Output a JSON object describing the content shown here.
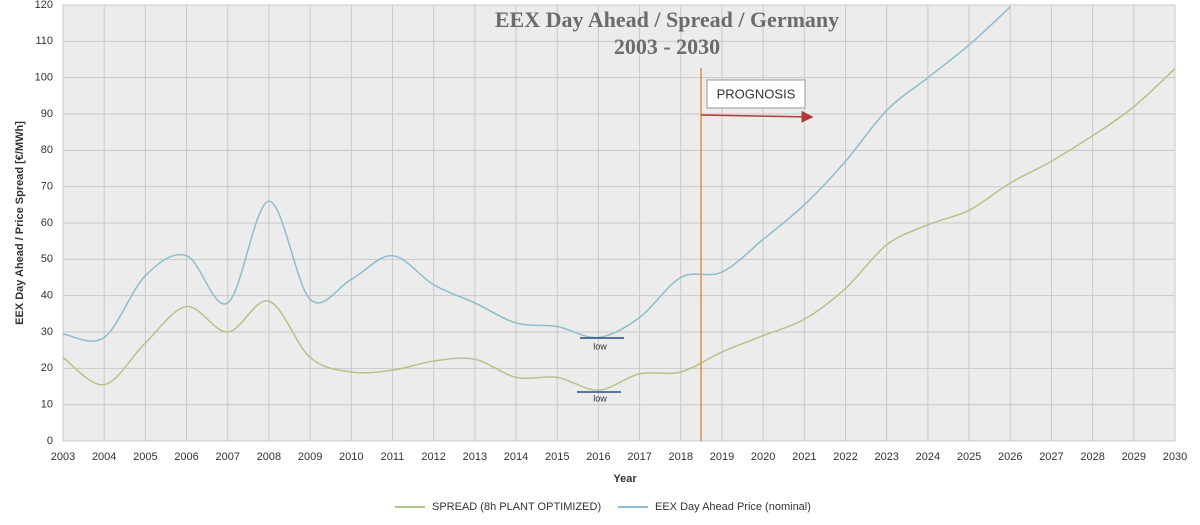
{
  "chart_data": {
    "type": "line",
    "title": "EEX Day Ahead / Spread / Germany",
    "subtitle": "2003 - 2030",
    "x_label": "Year",
    "y_label": "EEX Day Ahead / Price Spread [€/MWh]",
    "x": [
      2003,
      2004,
      2005,
      2006,
      2007,
      2008,
      2009,
      2010,
      2011,
      2012,
      2013,
      2014,
      2015,
      2016,
      2017,
      2018,
      2019,
      2020,
      2021,
      2022,
      2023,
      2024,
      2025,
      2026,
      2027,
      2028,
      2029,
      2030
    ],
    "series": [
      {
        "name": "SPREAD (8h PLANT OPTIMIZED)",
        "color": "#b3c38c",
        "values": [
          23,
          15.5,
          27,
          37,
          30,
          38.5,
          23,
          19,
          19.5,
          22,
          22.5,
          17.5,
          17.5,
          14,
          18.5,
          19,
          24.5,
          29,
          33.5,
          42,
          54,
          59.5,
          63.5,
          71,
          77,
          84,
          92,
          102.5
        ]
      },
      {
        "name": "EEX Day Ahead Price (nominal)",
        "color": "#90bccb",
        "values": [
          29.5,
          28.5,
          45.5,
          51,
          38,
          66,
          39,
          44.5,
          51,
          43,
          38,
          32.5,
          31.5,
          28.5,
          34,
          45,
          46.5,
          55.5,
          65,
          77,
          91,
          100,
          109,
          119.5,
          null,
          null,
          null,
          null
        ]
      }
    ],
    "annotations": [
      "PROGNOSIS",
      "low",
      "low"
    ],
    "xlim": [
      2003,
      2030
    ],
    "xticks": [
      2003,
      2004,
      2005,
      2006,
      2007,
      2008,
      2009,
      2010,
      2011,
      2012,
      2013,
      2014,
      2015,
      2016,
      2017,
      2018,
      2019,
      2020,
      2021,
      2022,
      2023,
      2024,
      2025,
      2026,
      2027,
      2028,
      2029,
      2030
    ],
    "ylim": [
      0,
      120
    ],
    "yticks": [
      0,
      10,
      20,
      30,
      40,
      50,
      60,
      70,
      80,
      90,
      100,
      110,
      120
    ],
    "grid": true,
    "legend": "bottom"
  }
}
